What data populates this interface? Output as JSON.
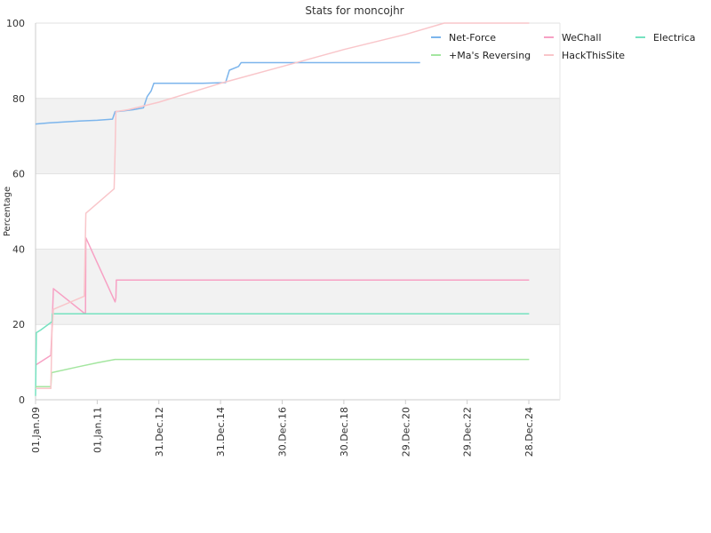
{
  "chart_data": {
    "type": "line",
    "title": "Stats for moncojhr",
    "xlabel": "",
    "ylabel": "Percentage",
    "ylim": [
      0,
      100
    ],
    "y_ticks": [
      0,
      20,
      40,
      60,
      80,
      100
    ],
    "x_range": [
      "2009-01-01",
      "2025-12-31"
    ],
    "x_ticks": [
      {
        "date": "2009-01-01",
        "label": "01.Jan.09"
      },
      {
        "date": "2011-01-01",
        "label": "01.Jan.11"
      },
      {
        "date": "2012-12-31",
        "label": "31.Dec.12"
      },
      {
        "date": "2014-12-31",
        "label": "31.Dec.14"
      },
      {
        "date": "2016-12-30",
        "label": "30.Dec.16"
      },
      {
        "date": "2018-12-30",
        "label": "30.Dec.18"
      },
      {
        "date": "2020-12-29",
        "label": "29.Dec.20"
      },
      {
        "date": "2022-12-29",
        "label": "29.Dec.22"
      },
      {
        "date": "2024-12-28",
        "label": "28.Dec.24"
      }
    ],
    "grid": "alternating bands",
    "band_color": "#f2f2f2",
    "legend_position": "top-right",
    "series": [
      {
        "name": "Net-Force",
        "color": "#7cb5ec",
        "points": [
          [
            "2009-01-01",
            73.2
          ],
          [
            "2009-06-01",
            73.5
          ],
          [
            "2010-06-01",
            74.0
          ],
          [
            "2011-01-01",
            74.2
          ],
          [
            "2011-07-01",
            74.5
          ],
          [
            "2011-08-01",
            76.5
          ],
          [
            "2011-10-01",
            76.6
          ],
          [
            "2012-03-01",
            77.0
          ],
          [
            "2012-07-01",
            77.5
          ],
          [
            "2012-08-15",
            80.5
          ],
          [
            "2012-10-01",
            82.0
          ],
          [
            "2012-11-01",
            84.0
          ],
          [
            "2013-06-01",
            84.0
          ],
          [
            "2014-06-01",
            84.0
          ],
          [
            "2015-03-01",
            84.2
          ],
          [
            "2015-04-15",
            87.5
          ],
          [
            "2015-08-01",
            88.5
          ],
          [
            "2015-09-01",
            89.5
          ],
          [
            "2017-06-01",
            89.5
          ],
          [
            "2019-06-01",
            89.5
          ],
          [
            "2021-06-20",
            89.5
          ]
        ]
      },
      {
        "name": "WeChall",
        "color": "#f7a1c4",
        "points": [
          [
            "2009-01-01",
            9.2
          ],
          [
            "2009-07-01",
            11.8
          ],
          [
            "2009-07-15",
            19.0
          ],
          [
            "2009-08-01",
            29.5
          ],
          [
            "2010-08-01",
            23.0
          ],
          [
            "2010-08-15",
            23.0
          ],
          [
            "2010-08-20",
            43.0
          ],
          [
            "2011-08-01",
            26.0
          ],
          [
            "2011-08-10",
            27.0
          ],
          [
            "2011-08-15",
            31.8
          ],
          [
            "2013-06-01",
            31.8
          ],
          [
            "2016-06-01",
            31.8
          ],
          [
            "2020-06-01",
            31.8
          ],
          [
            "2025-01-01",
            31.8
          ]
        ]
      },
      {
        "name": "Electrica",
        "color": "#76e2c0",
        "points": [
          [
            "2009-01-01",
            1.0
          ],
          [
            "2009-01-10",
            17.8
          ],
          [
            "2009-03-01",
            18.5
          ],
          [
            "2009-07-01",
            20.5
          ],
          [
            "2009-07-15",
            20.7
          ],
          [
            "2009-07-20",
            22.8
          ],
          [
            "2010-06-01",
            22.8
          ],
          [
            "2013-01-01",
            22.8
          ],
          [
            "2017-01-01",
            22.8
          ],
          [
            "2021-01-01",
            22.8
          ],
          [
            "2025-01-01",
            22.8
          ]
        ]
      },
      {
        "name": "+Ma's Reversing",
        "color": "#a4e6a0",
        "points": [
          [
            "2009-01-01",
            3.5
          ],
          [
            "2009-07-01",
            3.5
          ],
          [
            "2009-07-10",
            7.2
          ],
          [
            "2010-06-01",
            8.8
          ],
          [
            "2011-01-01",
            9.8
          ],
          [
            "2011-08-01",
            10.7
          ],
          [
            "2013-01-01",
            10.7
          ],
          [
            "2017-01-01",
            10.7
          ],
          [
            "2021-01-01",
            10.7
          ],
          [
            "2025-01-01",
            10.7
          ]
        ]
      },
      {
        "name": "HackThisSite",
        "color": "#f9c6ca",
        "points": [
          [
            "2009-01-01",
            3.0
          ],
          [
            "2009-07-01",
            3.0
          ],
          [
            "2009-07-15",
            18.0
          ],
          [
            "2009-08-01",
            24.0
          ],
          [
            "2010-08-01",
            27.5
          ],
          [
            "2010-08-20",
            49.5
          ],
          [
            "2011-07-20",
            56.0
          ],
          [
            "2011-08-01",
            66.0
          ],
          [
            "2011-08-10",
            76.5
          ],
          [
            "2012-01-01",
            77.0
          ],
          [
            "2013-01-01",
            79.0
          ],
          [
            "2015-01-01",
            84.0
          ],
          [
            "2017-01-01",
            88.5
          ],
          [
            "2019-01-01",
            93.0
          ],
          [
            "2021-01-01",
            97.0
          ],
          [
            "2022-04-01",
            100.0
          ],
          [
            "2025-01-01",
            100.0
          ]
        ]
      }
    ]
  }
}
